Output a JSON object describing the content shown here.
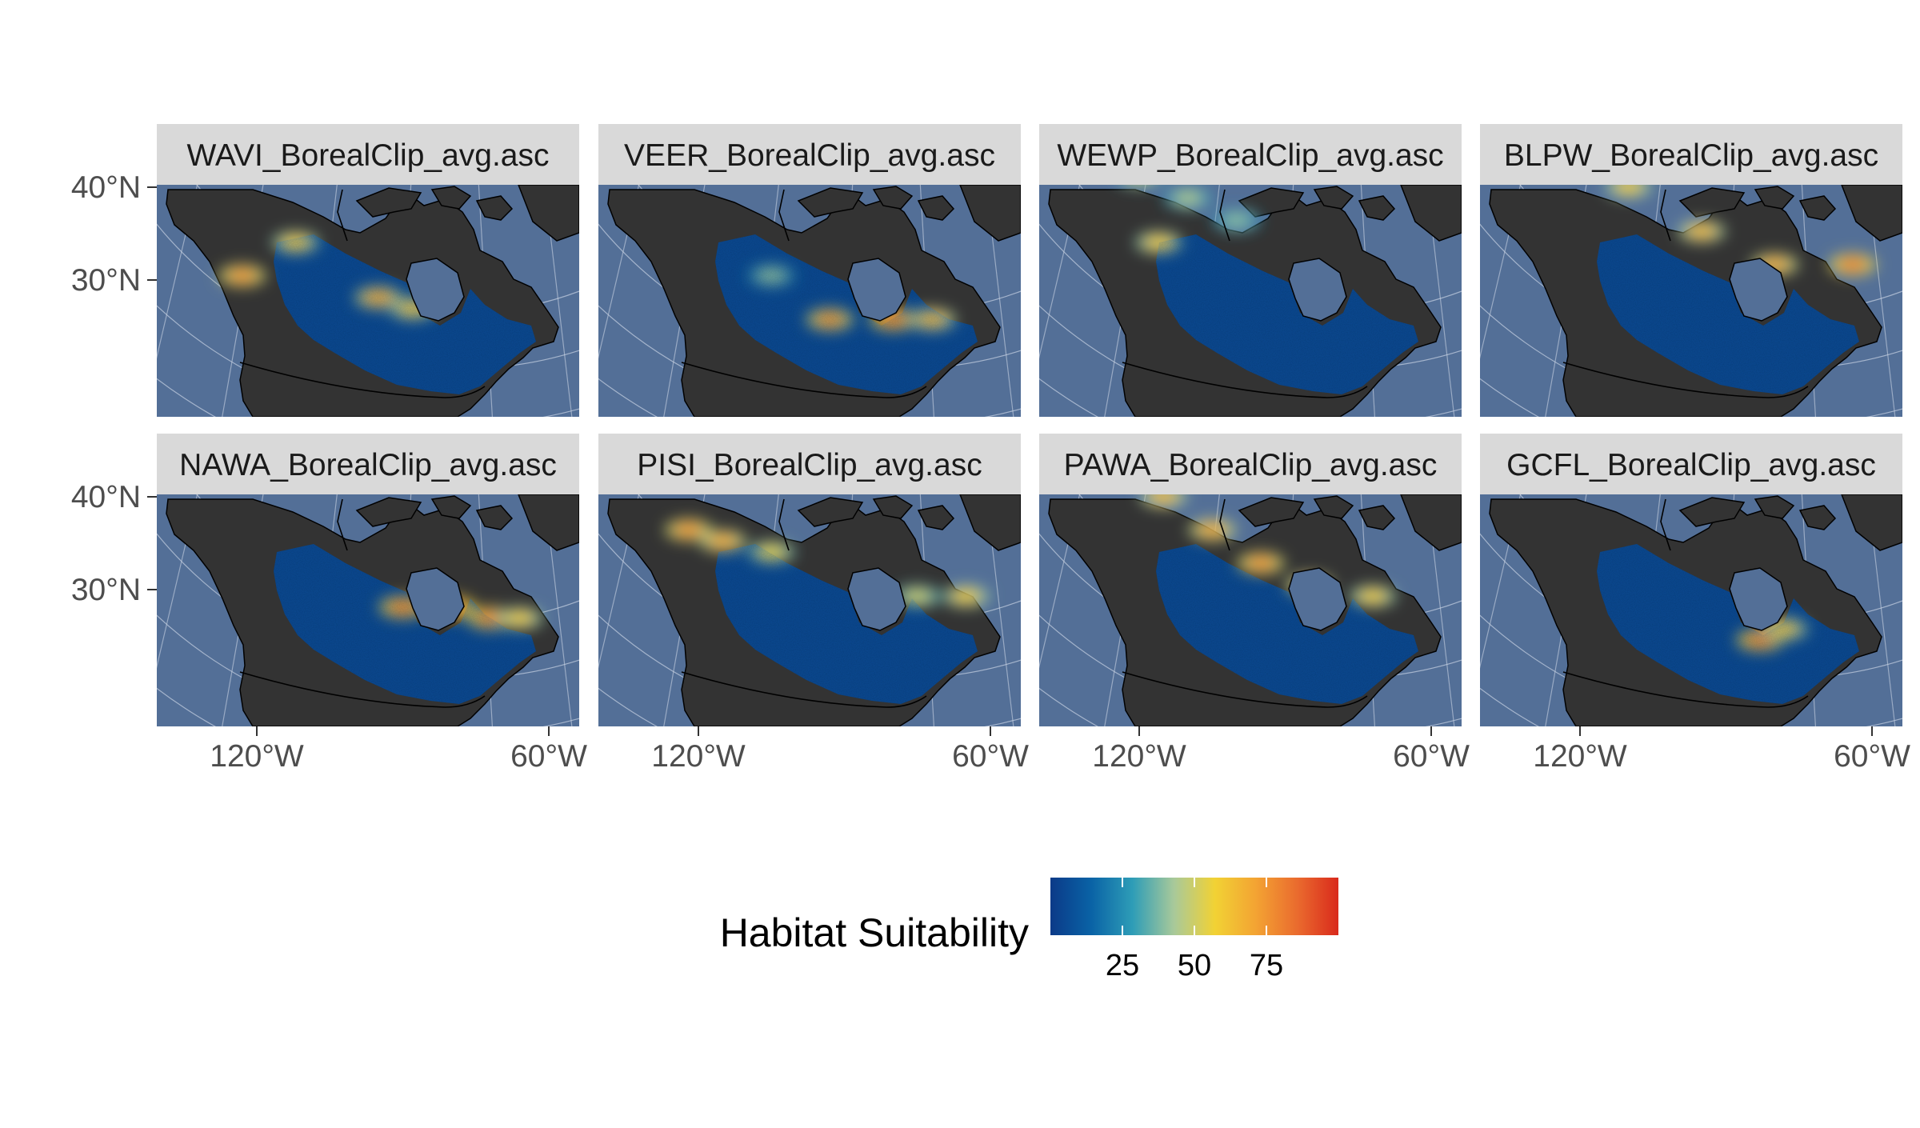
{
  "colors": {
    "ocean": "#536f97",
    "land": "#333333",
    "strip": "#d9d9d9",
    "graticule": "#c8d2e2",
    "border": "#000000",
    "scale": [
      "#0b3a88",
      "#0a63a6",
      "#2e9db7",
      "#a8c99a",
      "#f2d234",
      "#f3a333",
      "#ea6b2e",
      "#d92a1c"
    ]
  },
  "chart_data": {
    "type": "heatmap",
    "map_type": "faceted raster map",
    "projection": "Lambert conformal conic",
    "facets": [
      {
        "label": "WAVI_BorealClip_avg.asc",
        "hotspots": [
          [
            -123,
            49,
            75
          ],
          [
            -112,
            52,
            60
          ],
          [
            -95,
            47,
            70
          ],
          [
            -88,
            46,
            60
          ]
        ]
      },
      {
        "label": "VEER_BorealClip_avg.asc",
        "hotspots": [
          [
            -93,
            45,
            75
          ],
          [
            -80,
            45,
            80
          ],
          [
            -72,
            45,
            65
          ],
          [
            -105,
            49,
            40
          ]
        ]
      },
      {
        "label": "WEWP_BorealClip_avg.asc",
        "hotspots": [
          [
            -120,
            58,
            50
          ],
          [
            -116,
            52,
            60
          ],
          [
            -110,
            56,
            45
          ],
          [
            -100,
            54,
            40
          ]
        ]
      },
      {
        "label": "BLPW_BorealClip_avg.asc",
        "hotspots": [
          [
            -145,
            64,
            65
          ],
          [
            -125,
            60,
            65
          ],
          [
            -110,
            57,
            60
          ],
          [
            -95,
            53,
            65
          ],
          [
            -80,
            50,
            70
          ],
          [
            -64,
            50,
            80
          ]
        ]
      },
      {
        "label": "NAWA_BorealClip_avg.asc",
        "hotspots": [
          [
            -90,
            47,
            80
          ],
          [
            -80,
            47,
            85
          ],
          [
            -72,
            46,
            80
          ],
          [
            -66,
            46,
            60
          ]
        ]
      },
      {
        "label": "PISI_BorealClip_avg.asc",
        "hotspots": [
          [
            -122,
            54,
            75
          ],
          [
            -115,
            53,
            70
          ],
          [
            -105,
            52,
            55
          ],
          [
            -75,
            48,
            50
          ],
          [
            -65,
            48,
            60
          ]
        ]
      },
      {
        "label": "PAWA_BorealClip_avg.asc",
        "hotspots": [
          [
            -130,
            63,
            55
          ],
          [
            -115,
            57,
            65
          ],
          [
            -105,
            54,
            70
          ],
          [
            -95,
            51,
            75
          ],
          [
            -85,
            49,
            70
          ],
          [
            -72,
            48,
            60
          ]
        ]
      },
      {
        "label": "GCFL_BorealClip_avg.asc",
        "hotspots": [
          [
            -83,
            44,
            80
          ],
          [
            -78,
            45,
            60
          ]
        ]
      }
    ],
    "x_ticks": [
      "120°W",
      "60°W"
    ],
    "y_ticks": [
      "40°N",
      "30°N"
    ],
    "xlim": [
      -150,
      -55
    ],
    "ylim": [
      25,
      80
    ],
    "legend": {
      "title": "Habitat Suitability",
      "ticks": [
        "25",
        "50",
        "75"
      ],
      "range": [
        0,
        100
      ],
      "placement": "bottom"
    }
  }
}
